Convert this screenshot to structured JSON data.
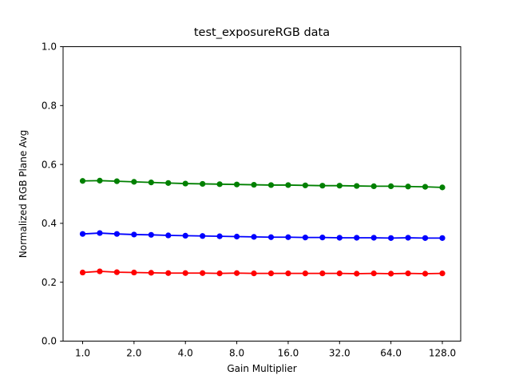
{
  "chart_data": {
    "type": "line",
    "title": "test_exposureRGB data",
    "xlabel": "Gain Multiplier",
    "ylabel": "Normalized RGB Plane Avg",
    "x_scale": "log2",
    "xlim_log2": [
      -0.389,
      7.373
    ],
    "ylim": [
      0.0,
      1.0
    ],
    "grid": false,
    "legend": "none",
    "x_ticks": [
      1.0,
      2.0,
      4.0,
      8.0,
      16.0,
      32.0,
      64.0,
      128.0
    ],
    "x_tick_labels": [
      "1.0",
      "2.0",
      "4.0",
      "8.0",
      "16.0",
      "32.0",
      "64.0",
      "128.0"
    ],
    "y_ticks": [
      0.0,
      0.2,
      0.4,
      0.6,
      0.8,
      1.0
    ],
    "y_tick_labels": [
      "0.0",
      "0.2",
      "0.4",
      "0.6",
      "0.8",
      "1.0"
    ],
    "x": [
      1.0,
      1.26,
      1.587,
      2.0,
      2.52,
      3.175,
      4.0,
      5.04,
      6.35,
      8.0,
      10.08,
      12.7,
      16.0,
      20.16,
      25.4,
      32.0,
      40.32,
      50.8,
      64.0,
      80.63,
      101.59,
      128.0
    ],
    "series": [
      {
        "name": "green",
        "color": "#008000",
        "marker": "circle",
        "values": [
          0.544,
          0.545,
          0.543,
          0.541,
          0.539,
          0.537,
          0.535,
          0.534,
          0.533,
          0.532,
          0.531,
          0.53,
          0.53,
          0.529,
          0.528,
          0.528,
          0.527,
          0.526,
          0.526,
          0.525,
          0.524,
          0.522
        ]
      },
      {
        "name": "blue",
        "color": "#0000ff",
        "marker": "circle",
        "values": [
          0.364,
          0.367,
          0.364,
          0.362,
          0.361,
          0.359,
          0.358,
          0.357,
          0.356,
          0.355,
          0.354,
          0.353,
          0.353,
          0.352,
          0.352,
          0.351,
          0.351,
          0.351,
          0.35,
          0.351,
          0.35,
          0.35
        ]
      },
      {
        "name": "red",
        "color": "#ff0000",
        "marker": "circle",
        "values": [
          0.233,
          0.237,
          0.234,
          0.233,
          0.232,
          0.231,
          0.231,
          0.231,
          0.23,
          0.231,
          0.23,
          0.23,
          0.23,
          0.23,
          0.23,
          0.23,
          0.229,
          0.23,
          0.229,
          0.23,
          0.229,
          0.23
        ]
      }
    ]
  }
}
